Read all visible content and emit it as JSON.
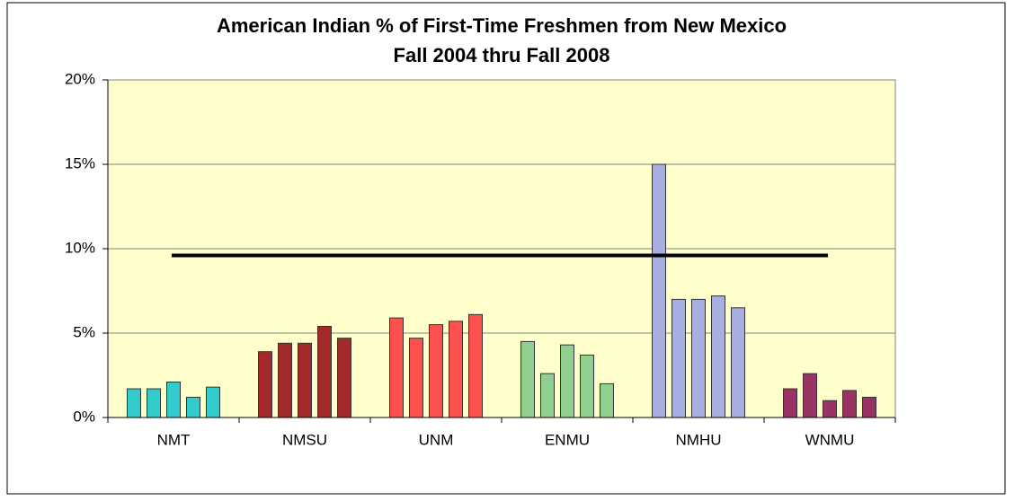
{
  "chart_data": {
    "type": "grouped_bar",
    "title": "American Indian % of First-Time Freshmen from New Mexico",
    "subtitle": "Fall 2004 thru Fall 2008",
    "categories": [
      "NMT",
      "NMSU",
      "UNM",
      "ENMU",
      "NMHU",
      "WNMU"
    ],
    "values": [
      [
        1.7,
        1.7,
        2.1,
        1.2,
        1.8
      ],
      [
        3.9,
        4.4,
        4.4,
        5.4,
        4.7
      ],
      [
        5.9,
        4.7,
        5.5,
        5.7,
        6.1
      ],
      [
        4.5,
        2.6,
        4.3,
        3.7,
        2.0
      ],
      [
        15.0,
        7.0,
        7.0,
        7.2,
        6.5
      ],
      [
        1.7,
        2.6,
        1.0,
        1.6,
        1.2
      ]
    ],
    "colors": [
      "#33cccc",
      "#a32a2a",
      "#ff5050",
      "#8fd08f",
      "#a8aee0",
      "#993366"
    ],
    "reference": 9.6,
    "ylim": [
      0,
      20
    ],
    "yticks": [
      {
        "value": 0,
        "label": "0%"
      },
      {
        "value": 5,
        "label": "5%"
      },
      {
        "value": 10,
        "label": "10%"
      },
      {
        "value": 15,
        "label": "15%"
      },
      {
        "value": 20,
        "label": "20%"
      }
    ],
    "grid": true,
    "background": "#ffffcc"
  }
}
